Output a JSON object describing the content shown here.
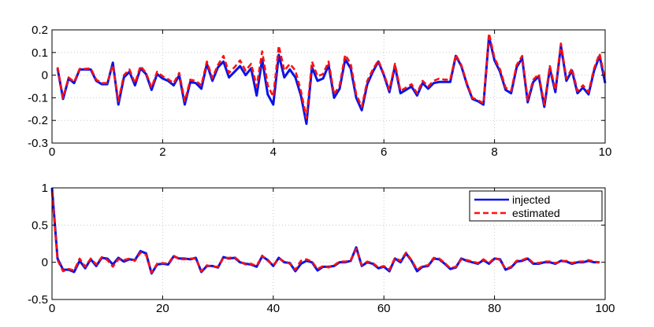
{
  "colors": {
    "injected": "#0a14e6",
    "estimated": "#ff1010",
    "grid": "#c8c8c8"
  },
  "chart_data": [
    {
      "type": "line",
      "xlim": [
        0,
        10
      ],
      "ylim": [
        -0.3,
        0.2
      ],
      "xticks": [
        0,
        2,
        4,
        6,
        8,
        10
      ],
      "xtick_labels": [
        "0",
        "2",
        "4",
        "6",
        "8",
        "10"
      ],
      "yticks": [
        -0.3,
        -0.2,
        -0.1,
        0,
        0.1,
        0.2
      ],
      "ytick_labels": [
        "-0.3",
        "-0.2",
        "-0.1",
        "0",
        "0.1",
        "0.2"
      ],
      "grid": true,
      "x": [
        0.1,
        0.2,
        0.3,
        0.4,
        0.5,
        0.6,
        0.7,
        0.8,
        0.9,
        1.0,
        1.1,
        1.2,
        1.3,
        1.4,
        1.5,
        1.6,
        1.7,
        1.8,
        1.9,
        2.0,
        2.1,
        2.2,
        2.3,
        2.4,
        2.5,
        2.6,
        2.7,
        2.8,
        2.9,
        3.0,
        3.1,
        3.2,
        3.3,
        3.4,
        3.5,
        3.6,
        3.7,
        3.8,
        3.9,
        4.0,
        4.1,
        4.2,
        4.3,
        4.4,
        4.5,
        4.6,
        4.7,
        4.8,
        4.9,
        5.0,
        5.1,
        5.2,
        5.3,
        5.4,
        5.5,
        5.6,
        5.7,
        5.8,
        5.9,
        6.0,
        6.1,
        6.2,
        6.3,
        6.4,
        6.5,
        6.6,
        6.7,
        6.8,
        6.9,
        7.0,
        7.1,
        7.2,
        7.3,
        7.4,
        7.5,
        7.6,
        7.7,
        7.8,
        7.9,
        8.0,
        8.1,
        8.2,
        8.3,
        8.4,
        8.5,
        8.6,
        8.7,
        8.8,
        8.9,
        9.0,
        9.1,
        9.2,
        9.3,
        9.4,
        9.5,
        9.6,
        9.7,
        9.8,
        9.9,
        10.0
      ],
      "series": [
        {
          "name": "injected",
          "style": "solid",
          "values": [
            0.03,
            -0.105,
            -0.015,
            -0.035,
            0.025,
            0.025,
            0.025,
            -0.025,
            -0.04,
            -0.04,
            0.055,
            -0.13,
            -0.01,
            0.015,
            -0.045,
            0.03,
            0.005,
            -0.065,
            0.005,
            -0.015,
            -0.025,
            -0.045,
            0.0,
            -0.13,
            -0.03,
            -0.035,
            -0.06,
            0.05,
            -0.025,
            0.035,
            0.06,
            -0.01,
            0.015,
            0.04,
            0.0,
            0.03,
            -0.09,
            0.07,
            -0.085,
            -0.13,
            0.09,
            -0.01,
            0.025,
            -0.01,
            -0.09,
            -0.215,
            0.035,
            -0.025,
            -0.015,
            0.045,
            -0.1,
            -0.06,
            0.07,
            0.03,
            -0.1,
            -0.155,
            -0.04,
            0.015,
            0.06,
            0.0,
            -0.075,
            0.04,
            -0.08,
            -0.065,
            -0.05,
            -0.09,
            -0.035,
            -0.06,
            -0.035,
            -0.03,
            -0.03,
            -0.03,
            0.085,
            0.04,
            -0.04,
            -0.105,
            -0.115,
            -0.13,
            0.17,
            0.065,
            0.015,
            -0.065,
            -0.08,
            0.035,
            0.075,
            -0.12,
            -0.03,
            -0.005,
            -0.14,
            0.03,
            -0.075,
            0.13,
            -0.025,
            0.02,
            -0.08,
            -0.055,
            -0.085,
            0.02,
            0.085,
            -0.035
          ]
        },
        {
          "name": "estimated",
          "style": "dashed",
          "values": [
            0.035,
            -0.1,
            -0.01,
            -0.03,
            0.028,
            0.028,
            0.03,
            -0.02,
            -0.035,
            -0.035,
            0.045,
            -0.115,
            0.0,
            0.025,
            -0.035,
            0.04,
            0.01,
            -0.055,
            0.015,
            -0.005,
            -0.018,
            -0.035,
            0.01,
            -0.115,
            -0.02,
            -0.025,
            -0.045,
            0.06,
            -0.012,
            0.045,
            0.085,
            0.01,
            0.035,
            0.065,
            0.02,
            0.05,
            -0.05,
            0.105,
            -0.045,
            -0.095,
            0.13,
            0.02,
            0.05,
            0.02,
            -0.07,
            -0.19,
            0.06,
            -0.005,
            0.005,
            0.06,
            -0.085,
            -0.045,
            0.09,
            0.05,
            -0.085,
            -0.14,
            -0.025,
            0.025,
            0.065,
            0.005,
            -0.065,
            0.05,
            -0.07,
            -0.055,
            -0.04,
            -0.08,
            -0.025,
            -0.05,
            -0.025,
            -0.015,
            -0.02,
            -0.02,
            0.09,
            0.045,
            -0.035,
            -0.1,
            -0.11,
            -0.125,
            0.185,
            0.075,
            0.025,
            -0.055,
            -0.07,
            0.045,
            0.085,
            -0.11,
            -0.02,
            0.005,
            -0.13,
            0.04,
            -0.065,
            0.14,
            -0.015,
            0.03,
            -0.07,
            -0.045,
            -0.075,
            0.03,
            0.095,
            -0.02
          ]
        }
      ]
    },
    {
      "type": "line",
      "xlim": [
        0,
        100
      ],
      "ylim": [
        -0.5,
        1
      ],
      "xticks": [
        0,
        20,
        40,
        60,
        80,
        100
      ],
      "xtick_labels": [
        "0",
        "20",
        "40",
        "60",
        "80",
        "100"
      ],
      "yticks": [
        -0.5,
        0,
        0.5,
        1
      ],
      "ytick_labels": [
        "-0.5",
        "0",
        "0.5",
        "1"
      ],
      "grid": true,
      "legend_position": "top-right",
      "x": [
        0,
        1,
        2,
        3,
        4,
        5,
        6,
        7,
        8,
        9,
        10,
        11,
        12,
        13,
        14,
        15,
        16,
        17,
        18,
        19,
        20,
        21,
        22,
        23,
        24,
        25,
        26,
        27,
        28,
        29,
        30,
        31,
        32,
        33,
        34,
        35,
        36,
        37,
        38,
        39,
        40,
        41,
        42,
        43,
        44,
        45,
        46,
        47,
        48,
        49,
        50,
        51,
        52,
        53,
        54,
        55,
        56,
        57,
        58,
        59,
        60,
        61,
        62,
        63,
        64,
        65,
        66,
        67,
        68,
        69,
        70,
        71,
        72,
        73,
        74,
        75,
        76,
        77,
        78,
        79,
        80,
        81,
        82,
        83,
        84,
        85,
        86,
        87,
        88,
        89,
        90,
        91,
        92,
        93,
        94,
        95,
        96,
        97,
        98,
        99
      ],
      "series": [
        {
          "name": "injected",
          "style": "solid",
          "values": [
            1.0,
            0.05,
            -0.1,
            -0.1,
            -0.13,
            0.02,
            -0.08,
            0.04,
            -0.05,
            0.06,
            0.05,
            -0.03,
            0.06,
            0.01,
            0.04,
            0.03,
            0.15,
            0.12,
            -0.15,
            -0.03,
            -0.02,
            -0.03,
            0.08,
            0.05,
            0.05,
            0.04,
            0.06,
            -0.13,
            -0.05,
            -0.05,
            -0.07,
            0.07,
            0.05,
            0.06,
            0.0,
            -0.02,
            -0.03,
            -0.06,
            0.08,
            0.03,
            -0.05,
            0.06,
            0.0,
            -0.01,
            -0.12,
            -0.02,
            0.02,
            0.0,
            -0.11,
            -0.06,
            -0.06,
            -0.05,
            0.0,
            0.0,
            0.02,
            0.2,
            -0.05,
            0.0,
            -0.02,
            -0.08,
            -0.06,
            -0.12,
            0.05,
            0.0,
            0.12,
            0.02,
            -0.12,
            -0.06,
            -0.05,
            0.05,
            0.04,
            -0.02,
            -0.09,
            -0.07,
            0.05,
            0.02,
            0.0,
            -0.02,
            0.03,
            -0.02,
            0.05,
            0.04,
            -0.1,
            -0.07,
            0.01,
            0.02,
            0.05,
            -0.02,
            -0.02,
            0.0,
            0.0,
            -0.02,
            0.02,
            0.01,
            -0.02,
            0.0,
            0.0,
            0.02,
            0.0,
            0.0
          ]
        },
        {
          "name": "estimated",
          "style": "dashed",
          "values": [
            0.95,
            0.03,
            -0.12,
            -0.09,
            -0.11,
            0.05,
            -0.06,
            0.05,
            -0.03,
            0.07,
            0.03,
            -0.06,
            0.04,
            0.03,
            0.05,
            0.02,
            0.13,
            0.1,
            -0.14,
            -0.02,
            -0.01,
            -0.02,
            0.09,
            0.04,
            0.04,
            0.05,
            0.05,
            -0.12,
            -0.04,
            -0.06,
            -0.06,
            0.06,
            0.06,
            0.07,
            0.01,
            -0.03,
            -0.02,
            -0.05,
            0.09,
            0.02,
            -0.04,
            0.05,
            0.01,
            -0.02,
            -0.1,
            0.02,
            0.04,
            0.01,
            -0.09,
            -0.05,
            -0.07,
            -0.04,
            0.01,
            0.01,
            0.03,
            0.18,
            -0.04,
            0.01,
            -0.01,
            -0.07,
            -0.05,
            -0.1,
            0.06,
            0.02,
            0.13,
            0.03,
            -0.1,
            -0.05,
            -0.04,
            0.06,
            0.05,
            -0.01,
            -0.08,
            -0.06,
            0.04,
            0.03,
            0.01,
            -0.01,
            0.04,
            -0.01,
            0.06,
            0.03,
            -0.09,
            -0.06,
            0.02,
            0.03,
            0.06,
            -0.01,
            -0.01,
            0.01,
            0.01,
            -0.01,
            0.01,
            0.02,
            -0.01,
            0.01,
            0.01,
            0.03,
            0.01,
            0.0
          ]
        }
      ]
    }
  ]
}
